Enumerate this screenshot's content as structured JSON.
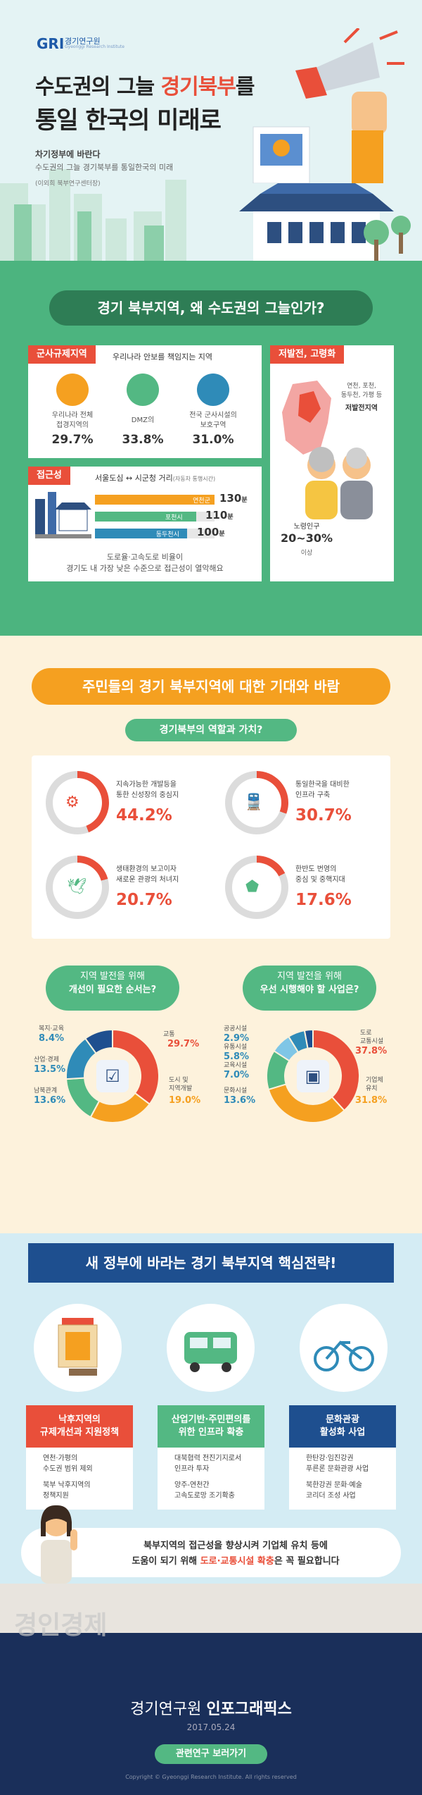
{
  "header": {
    "logo_gri": "GRI",
    "logo_name": "경기연구원",
    "logo_sub": "Gyeonggi Research Institute",
    "title_part1": "수도권의 그늘 ",
    "title_highlight": "경기북부",
    "title_part2": "를",
    "title_line2": "통일 한국의 미래로",
    "sub1": "차기정부에 바란다",
    "sub2": "수도권의 그늘 경기북부를 통일한국의 미래",
    "sub3": "(이외희 북부연구센터장)"
  },
  "section1": {
    "title": "경기 북부지역, 왜 수도권의 그늘인가?",
    "card1": {
      "tag": "군사규제지역",
      "subtitle": "우리나라 안보를 책임지는 지역",
      "items": [
        {
          "label": "우리나라 전체\n접경지역의",
          "value": "29.7%"
        },
        {
          "label": "DMZ의",
          "value": "33.8%"
        },
        {
          "label": "전국 군사시설의\n보호구역",
          "value": "31.0%"
        }
      ]
    },
    "card2": {
      "tag": "저발전, 고령화",
      "places": "연천, 포천,\n동두천, 가평 등",
      "places_label": "저발전지역",
      "elderly_label": "노령인구",
      "elderly_value": "20~30%",
      "elderly_suffix": "이상"
    },
    "card3": {
      "tag": "접근성",
      "subtitle": "서울도심 ↔ 시군청 거리",
      "subtitle_note": "(자동차 통행시간)",
      "bars": [
        {
          "name": "연천군",
          "value": "130",
          "unit": "분",
          "color": "#f5a020"
        },
        {
          "name": "포천시",
          "value": "110",
          "unit": "분",
          "color": "#53b883"
        },
        {
          "name": "동두천시",
          "value": "100",
          "unit": "분",
          "color": "#2f8bb8"
        }
      ],
      "caption_line1": "도로율·고속도로 비율이",
      "caption_line2": "경기도 내 가장 낮은 수준으로 접근성이 열악해요"
    }
  },
  "section2": {
    "title": "주민들의 경기 북부지역에 대한 기대와 바람",
    "subtitle": "경기북부의 역할과 가치?",
    "roles": [
      {
        "label": "지속가능한 개발등을\n통한 신성장의 중심지",
        "value": "44.2%",
        "fraction": 0.442
      },
      {
        "label": "통일한국을 대비한\n인프라 구축",
        "value": "30.7%",
        "fraction": 0.307
      },
      {
        "label": "생태환경의 보고이자\n새로운 관광의 처녀지",
        "value": "20.7%",
        "fraction": 0.207
      },
      {
        "label": "한반도 번영의\n중심 및 중핵지대",
        "value": "17.6%",
        "fraction": 0.176
      }
    ],
    "q1": {
      "line1": "지역 발전을 위해",
      "line2": "개선이 필요한 순서는?",
      "items": [
        {
          "label": "교통",
          "value": "29.7%",
          "color": "#e94f3a"
        },
        {
          "label": "도시 및\n지역개발",
          "value": "19.0%",
          "color": "#f5a020"
        },
        {
          "label": "남북관계",
          "value": "13.6%",
          "color": "#53b883"
        },
        {
          "label": "산업·경제",
          "value": "13.5%",
          "color": "#2f8bb8"
        },
        {
          "label": "복지·교육",
          "value": "8.4%",
          "color": "#1e4f8f"
        }
      ]
    },
    "q2": {
      "line1": "지역 발전을 위해",
      "line2": "우선 시행해야 할 사업은?",
      "items": [
        {
          "label": "도로\n교통시설",
          "value": "37.8%",
          "color": "#e94f3a"
        },
        {
          "label": "기업체\n유치",
          "value": "31.8%",
          "color": "#f5a020"
        },
        {
          "label": "문화시설",
          "value": "13.6%",
          "color": "#53b883"
        },
        {
          "label": "교육시설",
          "value": "7.0%",
          "color": "#7fc6e6"
        },
        {
          "label": "유통시설",
          "value": "5.8%",
          "color": "#2f8bb8"
        },
        {
          "label": "공공시설",
          "value": "2.9%",
          "color": "#1e4f8f"
        }
      ]
    }
  },
  "section3": {
    "banner": "새 정부에 바라는 경기 북부지역 핵심전략!",
    "strategies": [
      {
        "title": "낙후지역의\n규제개선과 지원정책",
        "color": "#e94f3a",
        "items": [
          "연천·가평의\n수도권 범위 제외",
          "북부 낙후지역의\n정책지원"
        ]
      },
      {
        "title": "산업기반·주민편의를\n위한 인프라 확충",
        "color": "#53b883",
        "items": [
          "대북협력 전진기지로서\n인프라 투자",
          "양주-연천간\n고속도로망 조기확충"
        ]
      },
      {
        "title": "문화관광\n활성화 사업",
        "color": "#1e4f8f",
        "items": [
          "한탄강·임진강권\n푸른론 문화관광 사업",
          "북한강권 문화·예술\n코리더 조성 사업"
        ]
      }
    ],
    "message_line1": "북부지역의 접근성을 향상시켜 기업체 유치 등에",
    "message_line2_a": "도움이 되기 위해 ",
    "message_line2_b": "도로·교통시설 확충",
    "message_line2_c": "은 꼭 필요합니다"
  },
  "footer": {
    "watermark": "경인경제",
    "title_a": "경기연구원 ",
    "title_b": "인포그래픽스",
    "date": "2017.05.24",
    "button": "관련연구 보러가기",
    "copyright": "Copyright © Gyeonggi Research Institute. All rights reserved"
  }
}
